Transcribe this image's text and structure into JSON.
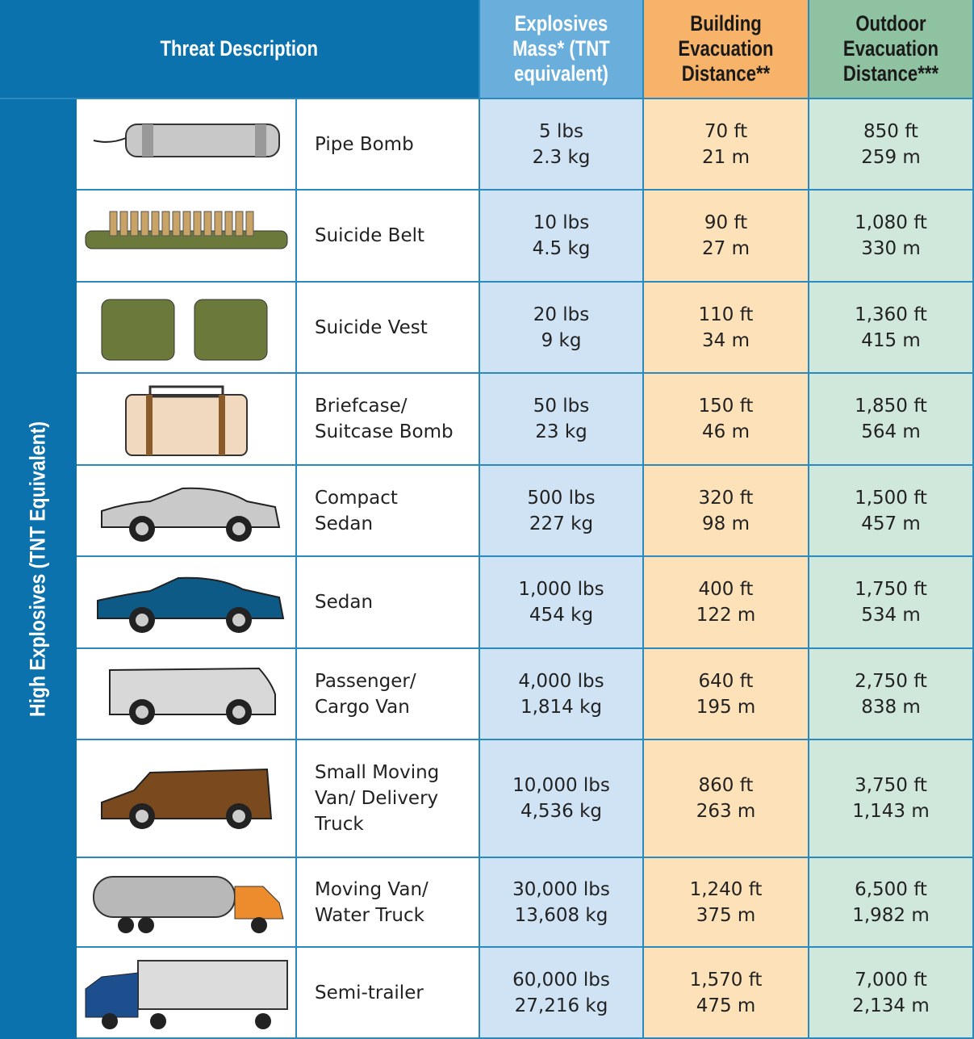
{
  "header": {
    "threat": "Threat Description",
    "mass": "Explosives Mass* (TNT equivalent)",
    "building": "Building Evacuation Distance**",
    "outdoor": "Outdoor Evacuation Distance***"
  },
  "side_label": "High Explosives (TNT Equivalent)",
  "rows": [
    {
      "name": [
        "Pipe Bomb"
      ],
      "mass": [
        "5 lbs",
        "2.3 kg"
      ],
      "building": [
        "70 ft",
        "21 m"
      ],
      "outdoor": [
        "850 ft",
        "259 m"
      ]
    },
    {
      "name": [
        "Suicide Belt"
      ],
      "mass": [
        "10 lbs",
        "4.5 kg"
      ],
      "building": [
        "90 ft",
        "27 m"
      ],
      "outdoor": [
        "1,080 ft",
        "330 m"
      ]
    },
    {
      "name": [
        "Suicide Vest"
      ],
      "mass": [
        "20 lbs",
        "9 kg"
      ],
      "building": [
        "110 ft",
        "34 m"
      ],
      "outdoor": [
        "1,360 ft",
        "415 m"
      ]
    },
    {
      "name": [
        "Briefcase/",
        "Suitcase Bomb"
      ],
      "mass": [
        "50 lbs",
        "23 kg"
      ],
      "building": [
        "150 ft",
        "46 m"
      ],
      "outdoor": [
        "1,850 ft",
        "564 m"
      ]
    },
    {
      "name": [
        "Compact",
        "Sedan"
      ],
      "mass": [
        "500 lbs",
        "227 kg"
      ],
      "building": [
        "320 ft",
        "98 m"
      ],
      "outdoor": [
        "1,500 ft",
        "457 m"
      ]
    },
    {
      "name": [
        "Sedan"
      ],
      "mass": [
        "1,000 lbs",
        "454 kg"
      ],
      "building": [
        "400 ft",
        "122 m"
      ],
      "outdoor": [
        "1,750 ft",
        "534 m"
      ]
    },
    {
      "name": [
        "Passenger/",
        "Cargo Van"
      ],
      "mass": [
        "4,000 lbs",
        "1,814 kg"
      ],
      "building": [
        "640 ft",
        "195 m"
      ],
      "outdoor": [
        "2,750 ft",
        "838 m"
      ]
    },
    {
      "name": [
        "Small Moving",
        "Van/ Delivery",
        "Truck"
      ],
      "mass": [
        "10,000 lbs",
        "4,536 kg"
      ],
      "building": [
        "860 ft",
        "263 m"
      ],
      "outdoor": [
        "3,750 ft",
        "1,143 m"
      ]
    },
    {
      "name": [
        "Moving Van/",
        "Water Truck"
      ],
      "mass": [
        "30,000 lbs",
        "13,608 kg"
      ],
      "building": [
        "1,240 ft",
        "375 m"
      ],
      "outdoor": [
        "6,500 ft",
        "1,982 m"
      ]
    },
    {
      "name": [
        "Semi-trailer"
      ],
      "mass": [
        "60,000 lbs",
        "27,216 kg"
      ],
      "building": [
        "1,570 ft",
        "475 m"
      ],
      "outdoor": [
        "7,000 ft",
        "2,134 m"
      ]
    }
  ]
}
